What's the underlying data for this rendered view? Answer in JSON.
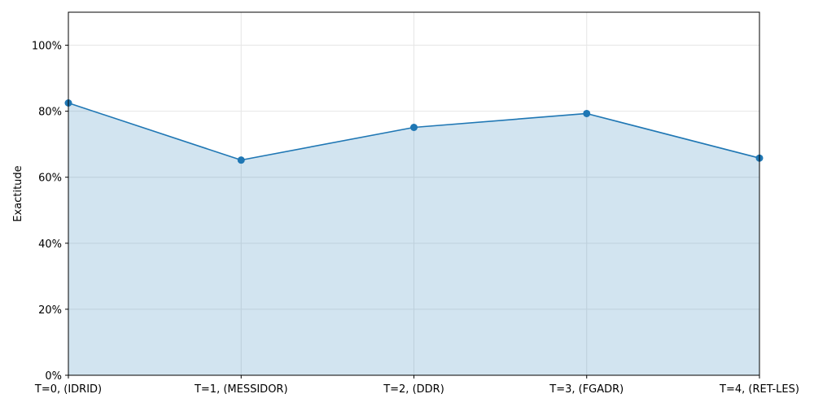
{
  "chart_data": {
    "type": "area",
    "title": "",
    "xlabel": "",
    "ylabel": "Exactitude",
    "categories": [
      "T=0, (IDRID)",
      "T=1, (MESSIDOR)",
      "T=2, (DDR)",
      "T=3, (FGADR)",
      "T=4, (RET-LES)"
    ],
    "series": [
      {
        "values": [
          82.5,
          65.2,
          75.1,
          79.3,
          65.8
        ]
      }
    ],
    "ylim": [
      0,
      110
    ],
    "yticks": [
      0,
      20,
      40,
      60,
      80,
      100
    ],
    "ytick_labels": [
      "0%",
      "20%",
      "40%",
      "60%",
      "80%",
      "100%"
    ],
    "grid": true,
    "line_color": "#1f77b4",
    "fill_color": "#1f77b4",
    "fill_opacity": 0.2,
    "grid_color": "#e6e6e6"
  }
}
